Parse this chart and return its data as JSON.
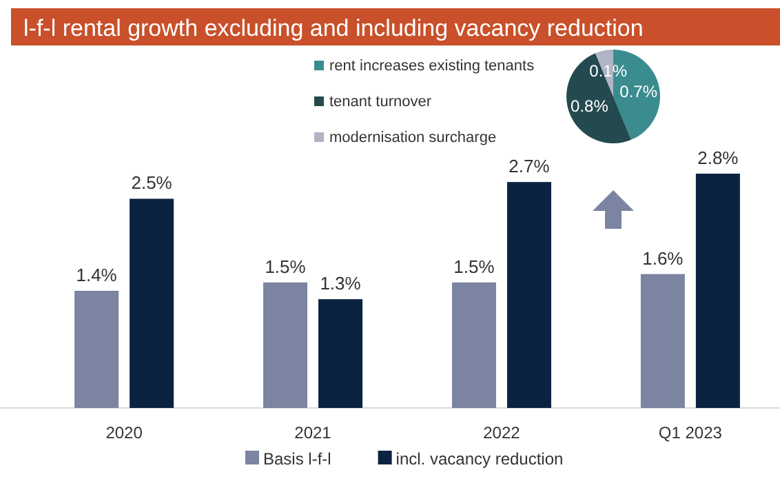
{
  "chart_data": [
    {
      "type": "bar",
      "title": "l-f-l rental growth excluding and including vacancy reduction",
      "categories": [
        "2020",
        "2021",
        "2022",
        "Q1 2023"
      ],
      "legend": "bottom",
      "series": [
        {
          "name": "Basis l-f-l",
          "color": "#7b84a0",
          "values": [
            1.4,
            1.5,
            1.5,
            1.6
          ],
          "value_labels": [
            "1.4%",
            "1.5%",
            "1.5%",
            "1.6%"
          ]
        },
        {
          "name": "incl. vacancy reduction",
          "color": "#0b2341",
          "values": [
            2.5,
            1.3,
            2.7,
            2.8
          ],
          "value_labels": [
            "2.5%",
            "1.3%",
            "2.7%",
            "2.8%"
          ]
        }
      ]
    },
    {
      "type": "pie",
      "categories": [
        "rent increases existing tenants",
        "tenant turnover",
        "modernisation surcharge"
      ],
      "values": [
        0.7,
        0.8,
        0.1
      ],
      "colors": [
        "#3a8c8f",
        "#234a4f",
        "#b0b4c4"
      ],
      "value_labels": [
        "0.7%",
        "0.8%",
        "0.1%"
      ],
      "legend": "left"
    }
  ]
}
